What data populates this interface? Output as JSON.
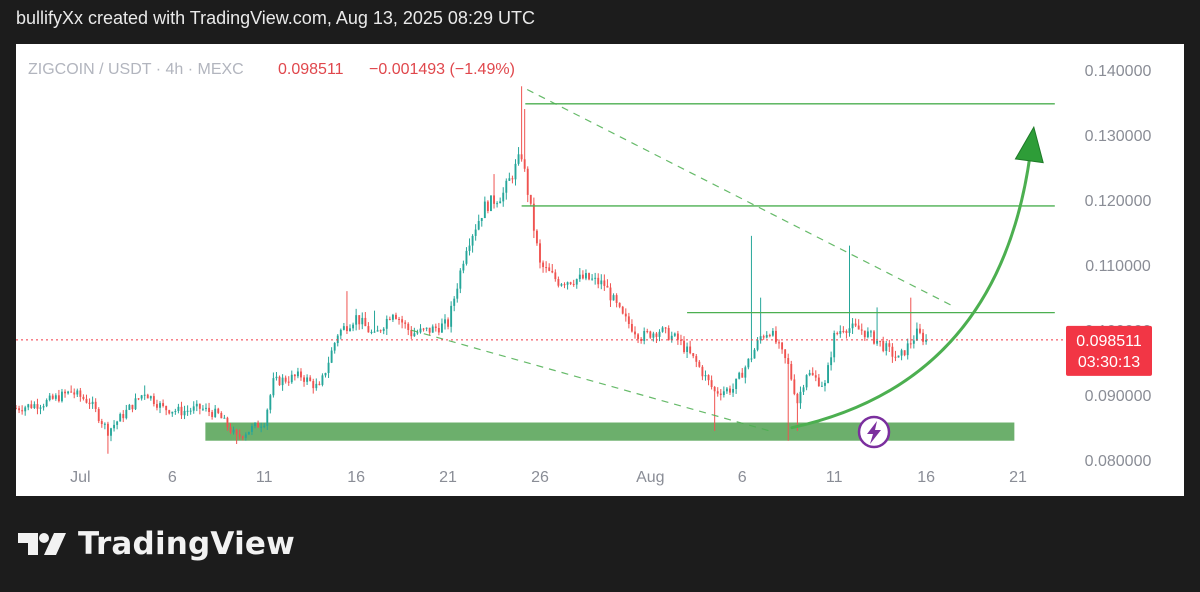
{
  "header": {
    "caption": "bullifyXx created with TradingView.com, Aug 13, 2025 08:29 UTC"
  },
  "legend": {
    "symbol": "ZIGCOIN / USDT · 4h · MEXC",
    "price": "0.098511",
    "change": "−0.001493 (−1.49%)"
  },
  "price_tag": {
    "price": "0.098511",
    "countdown": "03:30:13"
  },
  "brand": {
    "name": "TradingView"
  },
  "colors": {
    "up": "#26a69a",
    "down": "#ef5350",
    "drawing": "#4caf50",
    "zone": "#5fa85f",
    "bolt": "#7b2f9e"
  },
  "chart_data": {
    "type": "candlestick",
    "title": "",
    "y_ticks": [
      "0.140000",
      "0.130000",
      "0.120000",
      "0.110000",
      "0.100000",
      "0.090000",
      "0.080000"
    ],
    "y_tick_values": [
      0.14,
      0.13,
      0.12,
      0.11,
      0.1,
      0.09,
      0.08
    ],
    "ylim": [
      0.0745,
      0.144
    ],
    "x_ticks": [
      {
        "label": "Jul",
        "day": 1
      },
      {
        "label": "6",
        "day": 6
      },
      {
        "label": "11",
        "day": 11
      },
      {
        "label": "16",
        "day": 16
      },
      {
        "label": "21",
        "day": 21
      },
      {
        "label": "26",
        "day": 26
      },
      {
        "label": "Aug",
        "day": 32
      },
      {
        "label": "6",
        "day": 37
      },
      {
        "label": "11",
        "day": 42
      },
      {
        "label": "16",
        "day": 47
      },
      {
        "label": "21",
        "day": 52
      }
    ],
    "xlim": [
      -2.5,
      54.5
    ],
    "current_price": 0.098511,
    "anchors": [
      [
        -2.5,
        0.088
      ],
      [
        -1,
        0.0888
      ],
      [
        0.5,
        0.0905
      ],
      [
        1.5,
        0.089
      ],
      [
        2.5,
        0.0845
      ],
      [
        3.5,
        0.0875
      ],
      [
        4.5,
        0.0905
      ],
      [
        5.5,
        0.088
      ],
      [
        6.5,
        0.0875
      ],
      [
        7.5,
        0.088
      ],
      [
        8.5,
        0.087
      ],
      [
        9.5,
        0.0835
      ],
      [
        11,
        0.086
      ],
      [
        11.5,
        0.092
      ],
      [
        13,
        0.093
      ],
      [
        14,
        0.091
      ],
      [
        15,
        0.0995
      ],
      [
        16,
        0.102
      ],
      [
        17,
        0.099
      ],
      [
        18,
        0.103
      ],
      [
        19,
        0.0995
      ],
      [
        20,
        0.1
      ],
      [
        21,
        0.101
      ],
      [
        22,
        0.113
      ],
      [
        23,
        0.119
      ],
      [
        24,
        0.121
      ],
      [
        25,
        0.127
      ],
      [
        26,
        0.11
      ],
      [
        27,
        0.1075
      ],
      [
        28.5,
        0.108
      ],
      [
        29.5,
        0.107
      ],
      [
        30.5,
        0.102
      ],
      [
        31.5,
        0.099
      ],
      [
        32.5,
        0.1
      ],
      [
        33.5,
        0.0985
      ],
      [
        34.5,
        0.095
      ],
      [
        35.5,
        0.0905
      ],
      [
        36.5,
        0.091
      ],
      [
        37.5,
        0.096
      ],
      [
        38,
        0.099
      ],
      [
        38.5,
        0.1
      ],
      [
        39.5,
        0.0945
      ],
      [
        40,
        0.089
      ],
      [
        40.5,
        0.0935
      ],
      [
        41.5,
        0.0915
      ],
      [
        42,
        0.099
      ],
      [
        42.5,
        0.1005
      ],
      [
        43.5,
        0.1
      ],
      [
        44.5,
        0.098
      ],
      [
        45.5,
        0.0955
      ],
      [
        46.5,
        0.0995
      ],
      [
        47,
        0.0985
      ]
    ],
    "spikes": [
      {
        "day": 0.5,
        "high": 0.0915
      },
      {
        "day": 2.5,
        "low": 0.081
      },
      {
        "day": 4.5,
        "high": 0.0915
      },
      {
        "day": 9.5,
        "low": 0.0825
      },
      {
        "day": 15.5,
        "high": 0.106
      },
      {
        "day": 17,
        "high": 0.103
      },
      {
        "day": 23.5,
        "high": 0.124
      },
      {
        "day": 25,
        "high": 0.1375
      },
      {
        "day": 25.2,
        "high": 0.134
      },
      {
        "day": 27,
        "low": 0.107
      },
      {
        "day": 35.5,
        "low": 0.0845
      },
      {
        "day": 37.5,
        "high": 0.1145
      },
      {
        "day": 38,
        "high": 0.105
      },
      {
        "day": 39.5,
        "low": 0.083
      },
      {
        "day": 40,
        "low": 0.0845
      },
      {
        "day": 42.8,
        "high": 0.113
      },
      {
        "day": 44.3,
        "high": 0.1035
      },
      {
        "day": 46.2,
        "high": 0.105
      }
    ],
    "annotations": {
      "resistance_lines": [
        {
          "y": 0.1348,
          "from_day": 25.2,
          "to_day": 54
        },
        {
          "y": 0.1191,
          "from_day": 25,
          "to_day": 54
        },
        {
          "y": 0.1027,
          "from_day": 34,
          "to_day": 54
        }
      ],
      "trend_lines": [
        {
          "from": [
            25.3,
            0.137
          ],
          "to": [
            48.6,
            0.1035
          ]
        },
        {
          "from": [
            19,
            0.1
          ],
          "to": [
            38.5,
            0.0845
          ]
        }
      ],
      "support_zone": {
        "from_day": 7.8,
        "to_day": 51.8,
        "low": 0.083,
        "high": 0.0858
      },
      "projection": {
        "from": [
          39.7,
          0.085
        ],
        "via": [
          51.0,
          0.092
        ],
        "to": [
          52.8,
          0.13
        ]
      }
    }
  }
}
